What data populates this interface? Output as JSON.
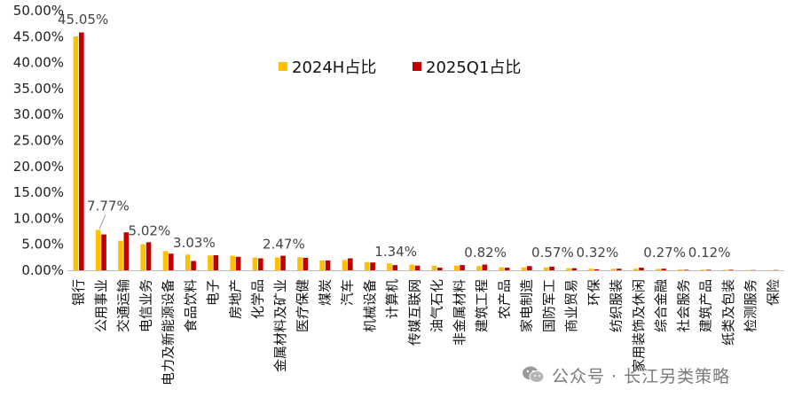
{
  "chart_data": {
    "type": "bar",
    "title": "",
    "xlabel": "",
    "ylabel": "",
    "ylim": [
      0,
      50
    ],
    "y_ticks": [
      "0.00%",
      "5.00%",
      "10.00%",
      "15.00%",
      "20.00%",
      "25.00%",
      "30.00%",
      "35.00%",
      "40.00%",
      "45.00%",
      "50.00%"
    ],
    "grid": false,
    "legend_position": "top-center",
    "categories": [
      "银行",
      "公用事业",
      "交通运输",
      "电信业务",
      "电力及新能源设备",
      "食品饮料",
      "电子",
      "房地产",
      "化学品",
      "金属材料及矿业",
      "医疗保健",
      "煤炭",
      "汽车",
      "机械设备",
      "计算机",
      "传媒互联网",
      "油气石化",
      "非金属材料",
      "建筑工程",
      "农产品",
      "家电制造",
      "国防军工",
      "商业贸易",
      "环保",
      "纺织服装",
      "家用装饰及休闲",
      "综合金融",
      "社会服务",
      "建筑产品",
      "纸类及包装",
      "检测服务",
      "保险"
    ],
    "series": [
      {
        "name": "2024H占比",
        "color": "#FFC000",
        "values": [
          45.05,
          7.77,
          5.7,
          5.02,
          3.7,
          3.03,
          2.85,
          2.8,
          2.47,
          2.47,
          2.5,
          1.9,
          1.95,
          1.6,
          1.34,
          1.1,
          0.9,
          0.9,
          0.82,
          0.6,
          0.57,
          0.57,
          0.4,
          0.32,
          0.3,
          0.3,
          0.27,
          0.2,
          0.12,
          0.1,
          0.05,
          0.03
        ]
      },
      {
        "name": "2025Q1占比",
        "color": "#C00000",
        "values": [
          45.8,
          6.9,
          7.3,
          5.4,
          3.2,
          1.8,
          2.9,
          2.6,
          2.3,
          2.8,
          2.4,
          1.9,
          2.3,
          1.5,
          1.0,
          0.9,
          0.5,
          1.0,
          1.1,
          0.5,
          0.8,
          0.7,
          0.4,
          0.2,
          0.3,
          0.5,
          0.3,
          0.1,
          0.1,
          0.1,
          0.05,
          0.05
        ]
      }
    ],
    "data_labels": [
      {
        "category_index": 0,
        "text": "45.05%"
      },
      {
        "category_index": 1,
        "text": "7.77%"
      },
      {
        "category_index": 3,
        "text": "5.02%"
      },
      {
        "category_index": 5,
        "text": "3.03%"
      },
      {
        "category_index": 9,
        "text": "2.47%"
      },
      {
        "category_index": 14,
        "text": "1.34%"
      },
      {
        "category_index": 18,
        "text": "0.82%"
      },
      {
        "category_index": 21,
        "text": "0.57%"
      },
      {
        "category_index": 23,
        "text": "0.32%"
      },
      {
        "category_index": 26,
        "text": "0.27%"
      },
      {
        "category_index": 28,
        "text": "0.12%"
      }
    ]
  },
  "watermark": {
    "text": "公众号 · 长江另类策略",
    "icon": "wechat-icon"
  }
}
